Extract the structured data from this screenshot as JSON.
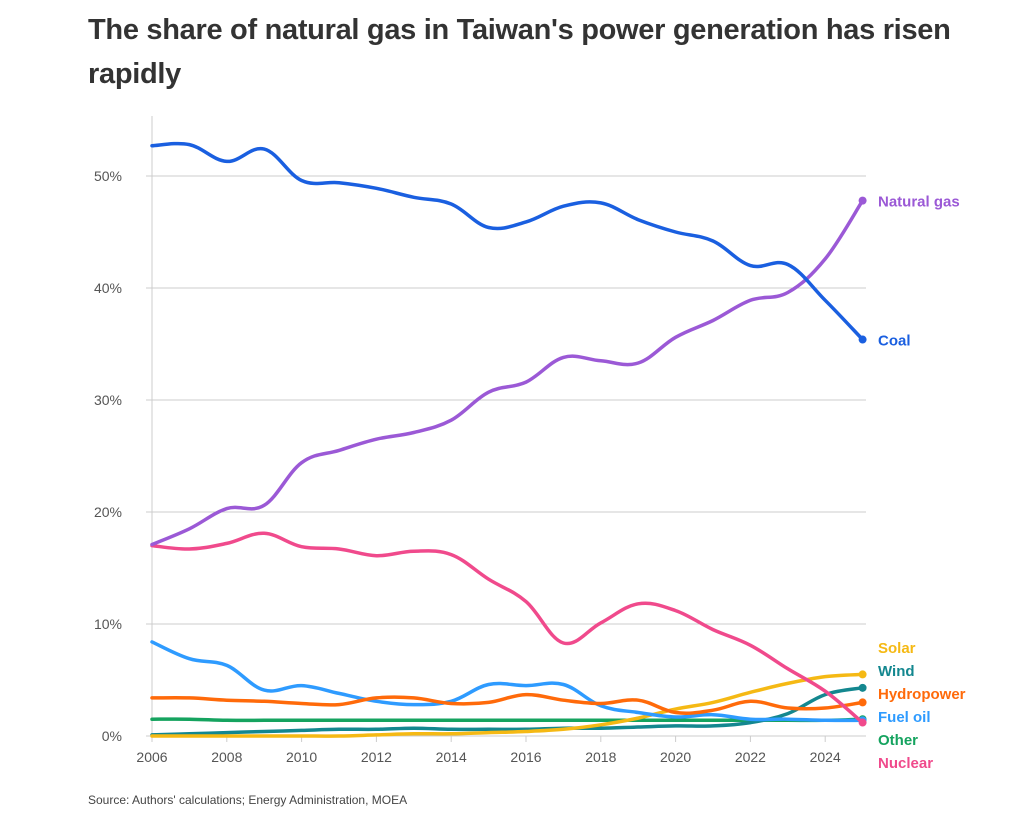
{
  "title": "The share of natural gas in Taiwan's power generation has risen rapidly",
  "source": "Source: Authors' calculations; Energy Administration, MOEA",
  "chart_data": {
    "type": "line",
    "title": "The share of natural gas in Taiwan's power generation has risen rapidly",
    "xlabel": "",
    "ylabel": "",
    "x": [
      2006,
      2007,
      2008,
      2009,
      2010,
      2011,
      2012,
      2013,
      2014,
      2015,
      2016,
      2017,
      2018,
      2019,
      2020,
      2021,
      2022,
      2023,
      2024,
      2025
    ],
    "xticks": [
      "2006",
      "2008",
      "2010",
      "2012",
      "2014",
      "2016",
      "2018",
      "2020",
      "2022",
      "2024"
    ],
    "yticks": [
      "0%",
      "10%",
      "20%",
      "30%",
      "40%",
      "50%"
    ],
    "ylim": [
      0,
      55
    ],
    "grid": true,
    "legend": "direct labels at right end of lines",
    "series": [
      {
        "name": "Natural gas",
        "color": "#9b59d6",
        "values": [
          17.1,
          18.5,
          20.3,
          20.6,
          24.4,
          25.5,
          26.5,
          27.1,
          28.2,
          30.7,
          31.6,
          33.8,
          33.5,
          33.3,
          35.6,
          37.1,
          38.9,
          39.6,
          42.6,
          47.8
        ]
      },
      {
        "name": "Coal",
        "color": "#1a5fe0",
        "values": [
          52.7,
          52.8,
          51.3,
          52.4,
          49.6,
          49.4,
          48.9,
          48.1,
          47.5,
          45.4,
          45.9,
          47.3,
          47.6,
          46.1,
          45.0,
          44.2,
          42.0,
          42.1,
          38.9,
          35.4
        ]
      },
      {
        "name": "Solar",
        "color": "#f5b914",
        "values": [
          0.0,
          0.0,
          0.0,
          0.0,
          0.0,
          0.0,
          0.1,
          0.2,
          0.2,
          0.3,
          0.4,
          0.6,
          1.0,
          1.6,
          2.4,
          3.0,
          3.9,
          4.7,
          5.3,
          5.5
        ]
      },
      {
        "name": "Wind",
        "color": "#13878f",
        "values": [
          0.1,
          0.2,
          0.3,
          0.4,
          0.5,
          0.6,
          0.6,
          0.7,
          0.6,
          0.6,
          0.6,
          0.7,
          0.7,
          0.8,
          0.9,
          0.9,
          1.2,
          2.0,
          3.7,
          4.3
        ]
      },
      {
        "name": "Hydropower",
        "color": "#ff6a0a",
        "values": [
          3.4,
          3.4,
          3.2,
          3.1,
          2.9,
          2.8,
          3.4,
          3.4,
          2.9,
          3.0,
          3.7,
          3.2,
          2.9,
          3.2,
          2.1,
          2.3,
          3.1,
          2.5,
          2.5,
          3.0
        ]
      },
      {
        "name": "Fuel oil",
        "color": "#2e9bff",
        "values": [
          8.4,
          6.9,
          6.3,
          4.1,
          4.5,
          3.8,
          3.1,
          2.8,
          3.1,
          4.6,
          4.5,
          4.6,
          2.7,
          2.1,
          1.7,
          1.9,
          1.5,
          1.5,
          1.4,
          1.4
        ]
      },
      {
        "name": "Other",
        "color": "#15a35f",
        "values": [
          1.5,
          1.5,
          1.4,
          1.4,
          1.4,
          1.4,
          1.4,
          1.4,
          1.4,
          1.4,
          1.4,
          1.4,
          1.4,
          1.4,
          1.4,
          1.4,
          1.4,
          1.4,
          1.4,
          1.5
        ]
      },
      {
        "name": "Nuclear",
        "color": "#f04a8c",
        "values": [
          17.0,
          16.7,
          17.2,
          18.1,
          16.9,
          16.7,
          16.1,
          16.5,
          16.2,
          14.0,
          12.0,
          8.3,
          10.1,
          11.8,
          11.2,
          9.5,
          8.1,
          6.0,
          4.0,
          1.2
        ]
      }
    ]
  },
  "end_labels": [
    {
      "name": "Natural gas",
      "color": "#9b59d6"
    },
    {
      "name": "Coal",
      "color": "#1a5fe0"
    },
    {
      "name": "Solar",
      "color": "#f5b914"
    },
    {
      "name": "Wind",
      "color": "#13878f"
    },
    {
      "name": "Hydropower",
      "color": "#ff6a0a"
    },
    {
      "name": "Fuel oil",
      "color": "#2e9bff"
    },
    {
      "name": "Other",
      "color": "#15a35f"
    },
    {
      "name": "Nuclear",
      "color": "#f04a8c"
    }
  ]
}
